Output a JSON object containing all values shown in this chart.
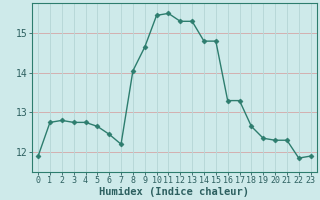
{
  "x": [
    0,
    1,
    2,
    3,
    4,
    5,
    6,
    7,
    8,
    9,
    10,
    11,
    12,
    13,
    14,
    15,
    16,
    17,
    18,
    19,
    20,
    21,
    22,
    23
  ],
  "y": [
    11.9,
    12.75,
    12.8,
    12.75,
    12.75,
    12.65,
    12.45,
    12.2,
    14.05,
    14.65,
    15.45,
    15.5,
    15.3,
    15.3,
    14.8,
    14.8,
    13.3,
    13.3,
    12.65,
    12.35,
    12.3,
    12.3,
    11.85,
    11.9
  ],
  "line_color": "#2d7d6e",
  "marker": "D",
  "marker_size": 2.5,
  "bg_color": "#ceeaea",
  "grid_color_v": "#b8d8d8",
  "grid_color_h": "#d4b0b0",
  "xlabel": "Humidex (Indice chaleur)",
  "ylabel": "",
  "title": "",
  "xlim": [
    -0.5,
    23.5
  ],
  "ylim": [
    11.5,
    15.75
  ],
  "yticks": [
    12,
    13,
    14,
    15
  ],
  "xticks": [
    0,
    1,
    2,
    3,
    4,
    5,
    6,
    7,
    8,
    9,
    10,
    11,
    12,
    13,
    14,
    15,
    16,
    17,
    18,
    19,
    20,
    21,
    22,
    23
  ],
  "tick_fontsize": 6,
  "xlabel_fontsize": 7.5,
  "line_width": 1.0,
  "text_color": "#2d6060"
}
